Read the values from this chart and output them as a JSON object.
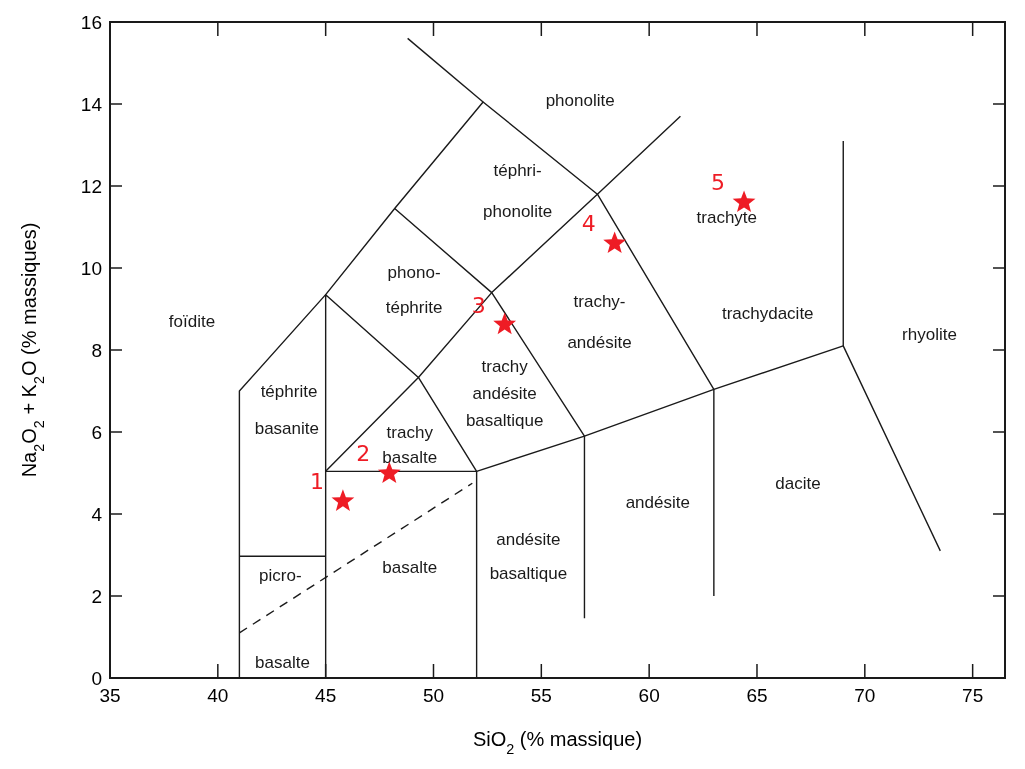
{
  "chart_data": {
    "type": "line",
    "xlabel": "SiO$_{2}$ (% massique)",
    "ylabel": "Na$_{2}$O$_{2}$ + K$_{2}$O (% massiques)",
    "xlim": [
      35,
      76.5
    ],
    "ylim": [
      0,
      16
    ],
    "xticks": [
      35,
      40,
      45,
      50,
      55,
      60,
      65,
      70,
      75
    ],
    "yticks": [
      0,
      2,
      4,
      6,
      8,
      10,
      12,
      14,
      16
    ],
    "grid": false,
    "series": [
      {
        "color": "#1a1a1a",
        "marker": "none",
        "x": [
          41,
          41,
          45,
          48.2,
          52.3,
          57.6,
          63,
          63
        ],
        "values": [
          0,
          7,
          9.35,
          11.45,
          14.05,
          11.8,
          7.04,
          2.0
        ]
      },
      {
        "color": "#1a1a1a",
        "marker": "none",
        "x": [
          48.8,
          52.3
        ],
        "values": [
          15.6,
          14.05
        ]
      },
      {
        "color": "#1a1a1a",
        "marker": "none",
        "x": [
          41,
          45
        ],
        "values": [
          2.97,
          2.97
        ]
      },
      {
        "color": "#1a1a1a",
        "marker": "none",
        "x": [
          45,
          45,
          49.3,
          52,
          52
        ],
        "values": [
          0,
          9.35,
          7.33,
          5.04,
          0
        ]
      },
      {
        "color": "#1a1a1a",
        "marker": "none",
        "x": [
          45,
          52,
          57,
          63,
          69,
          73.5
        ],
        "values": [
          5.04,
          5.04,
          5.9,
          7.04,
          8.1,
          3.1
        ]
      },
      {
        "color": "#1a1a1a",
        "marker": "none",
        "x": [
          45,
          49.3,
          52.7,
          57.6,
          61.45
        ],
        "values": [
          5.04,
          7.33,
          9.4,
          11.8,
          13.7
        ]
      },
      {
        "color": "#1a1a1a",
        "marker": "none",
        "x": [
          48.2,
          52.7,
          57,
          57
        ],
        "values": [
          11.45,
          9.4,
          5.9,
          1.46
        ]
      },
      {
        "color": "#1a1a1a",
        "marker": "none",
        "x": [
          69,
          69
        ],
        "values": [
          13.1,
          8.1
        ]
      },
      {
        "color": "#1a1a1a",
        "marker": "none",
        "line_style": "dashed",
        "x": [
          41,
          51.8
        ],
        "values": [
          1.1,
          4.75
        ]
      },
      {
        "type": "scatter",
        "color": "#ee1c25",
        "marker": "star",
        "x": [
          45.8,
          47.95,
          53.3,
          58.4,
          64.4
        ],
        "values": [
          4.31,
          4.99,
          8.62,
          10.6,
          11.6
        ]
      }
    ],
    "annotations": [
      "phonolite",
      "téphri-",
      "phonolite",
      "phono-",
      "téphrite",
      "foïdite",
      "téphrite",
      "basanite",
      "trachy",
      "basalte",
      "trachy",
      "andésite",
      "basaltique",
      "trachy-",
      "andésite",
      "trachyte",
      "trachydacite",
      "rhyolite",
      "dacite",
      "andésite",
      "andésite",
      "basaltique",
      "basalte",
      "picro-",
      "basalte",
      {
        "text": "1",
        "x": 45.8,
        "y": 4.31
      },
      {
        "text": "2",
        "x": 47.95,
        "y": 4.99
      },
      {
        "text": "3",
        "x": 53.3,
        "y": 8.62
      },
      {
        "text": "4",
        "x": 58.4,
        "y": 10.6
      },
      {
        "text": "5",
        "x": 64.4,
        "y": 11.6
      }
    ]
  }
}
